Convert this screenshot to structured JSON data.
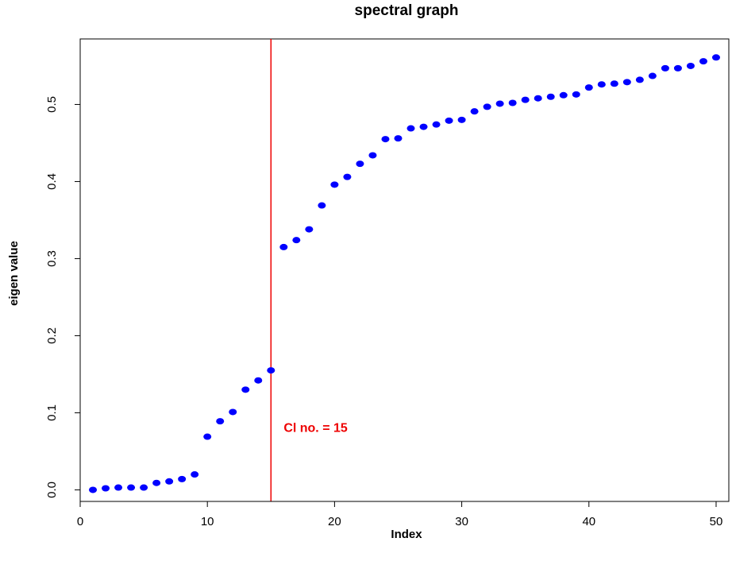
{
  "chart_data": {
    "type": "scatter",
    "title": "spectral graph",
    "xlabel": "Index",
    "ylabel": "eigen value",
    "xlim": [
      0,
      51
    ],
    "ylim": [
      -0.015,
      0.585
    ],
    "x_ticks": [
      0,
      10,
      20,
      30,
      40,
      50
    ],
    "x_tick_labels": [
      "0",
      "10",
      "20",
      "30",
      "40",
      "50"
    ],
    "y_ticks": [
      0.0,
      0.1,
      0.2,
      0.3,
      0.4,
      0.5
    ],
    "y_tick_labels": [
      "0.0",
      "0.1",
      "0.2",
      "0.3",
      "0.4",
      "0.5"
    ],
    "grid": false,
    "point_color": "#0000ff",
    "series": [
      {
        "x": [
          1,
          2,
          3,
          4,
          5,
          6,
          7,
          8,
          9,
          10,
          11,
          12,
          13,
          14,
          15,
          16,
          17,
          18,
          19,
          20,
          21,
          22,
          23,
          24,
          25,
          26,
          27,
          28,
          29,
          30,
          31,
          32,
          33,
          34,
          35,
          36,
          37,
          38,
          39,
          40,
          41,
          42,
          43,
          44,
          45,
          46,
          47,
          48,
          49,
          50
        ],
        "y": [
          0.0,
          0.002,
          0.003,
          0.003,
          0.003,
          0.009,
          0.011,
          0.014,
          0.02,
          0.069,
          0.089,
          0.101,
          0.13,
          0.142,
          0.155,
          0.315,
          0.324,
          0.338,
          0.369,
          0.396,
          0.406,
          0.423,
          0.434,
          0.455,
          0.456,
          0.469,
          0.471,
          0.474,
          0.479,
          0.48,
          0.491,
          0.497,
          0.501,
          0.502,
          0.506,
          0.508,
          0.51,
          0.512,
          0.513,
          0.522,
          0.526,
          0.527,
          0.529,
          0.532,
          0.537,
          0.547,
          0.547,
          0.55,
          0.556,
          0.561
        ]
      }
    ],
    "vline": {
      "x": 15,
      "color": "#ee0000"
    },
    "annotation": {
      "text": "Cl no. = 15",
      "x": 16,
      "y": 0.075,
      "color": "#ee0000"
    }
  }
}
